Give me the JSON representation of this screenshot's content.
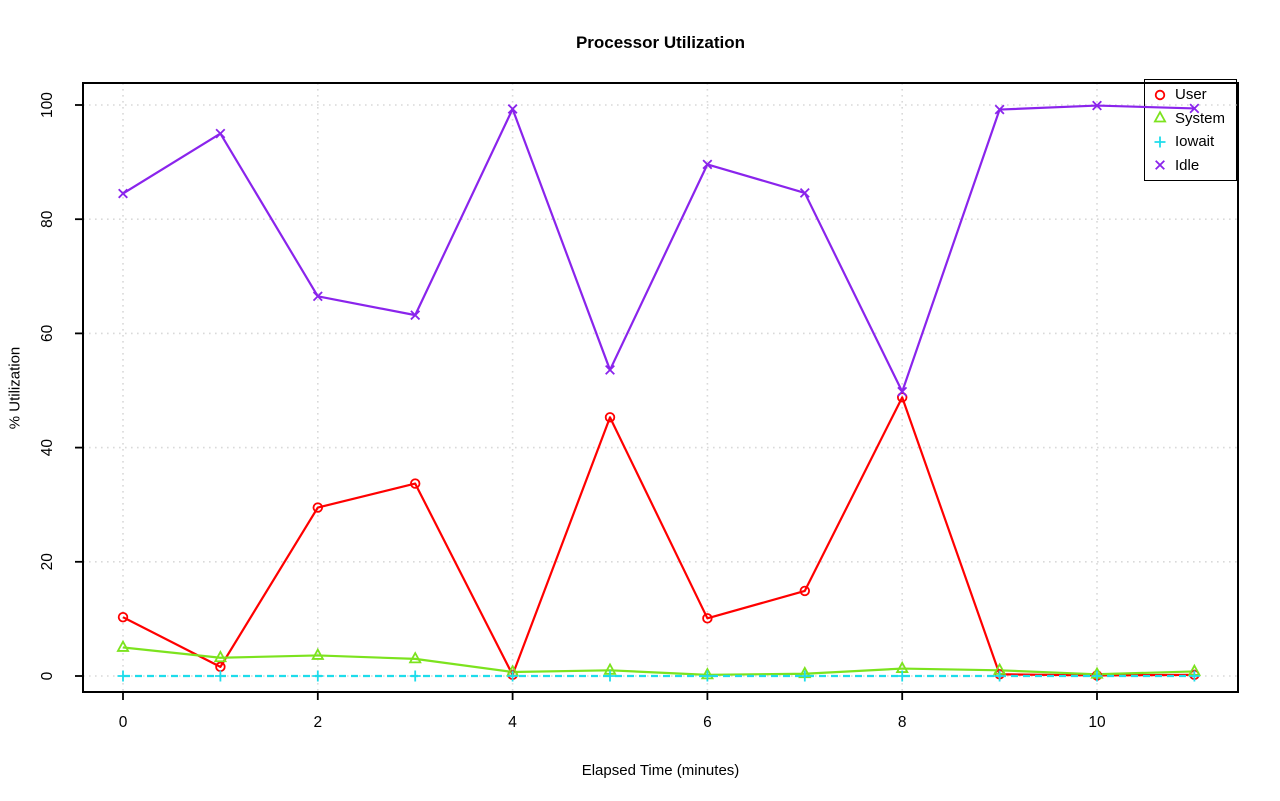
{
  "window": {
    "title": "Processor Utilization"
  },
  "chart_data": {
    "type": "line",
    "title": "Processor Utilization",
    "xlabel": "Elapsed Time (minutes)",
    "ylabel": "% Utilization",
    "x": [
      0,
      1,
      2,
      3,
      4,
      5,
      6,
      7,
      8,
      9,
      10,
      11
    ],
    "xticks": [
      0,
      2,
      4,
      6,
      8,
      10
    ],
    "yticks": [
      0,
      20,
      40,
      60,
      80,
      100
    ],
    "xlim": [
      -0.44,
      11.44
    ],
    "ylim": [
      -4,
      104
    ],
    "grid": true,
    "grid_style": "dotted",
    "grid_color": "#D9D9D9",
    "legend_position": "top-right",
    "series": [
      {
        "name": "User",
        "color": "#FF0000",
        "marker": "circle",
        "line": "solid",
        "values": [
          10.3,
          1.6,
          29.5,
          33.7,
          0.2,
          45.3,
          10.1,
          14.9,
          48.8,
          0.3,
          0.1,
          0.2
        ]
      },
      {
        "name": "System",
        "color": "#7CE31E",
        "marker": "triangle",
        "line": "solid",
        "values": [
          5.0,
          3.2,
          3.6,
          3.0,
          0.7,
          1.0,
          0.2,
          0.4,
          1.3,
          1.0,
          0.3,
          0.8
        ]
      },
      {
        "name": "Iowait",
        "color": "#1EDCEB",
        "marker": "plus",
        "line": "dashed",
        "values": [
          0,
          0,
          0,
          0,
          0,
          0,
          0,
          0,
          0,
          0,
          0,
          0
        ]
      },
      {
        "name": "Idle",
        "color": "#8A24EC",
        "marker": "x",
        "line": "solid",
        "values": [
          84.5,
          95.0,
          66.5,
          63.2,
          99.3,
          53.6,
          89.6,
          84.6,
          49.8,
          99.2,
          99.9,
          99.4
        ]
      }
    ]
  }
}
